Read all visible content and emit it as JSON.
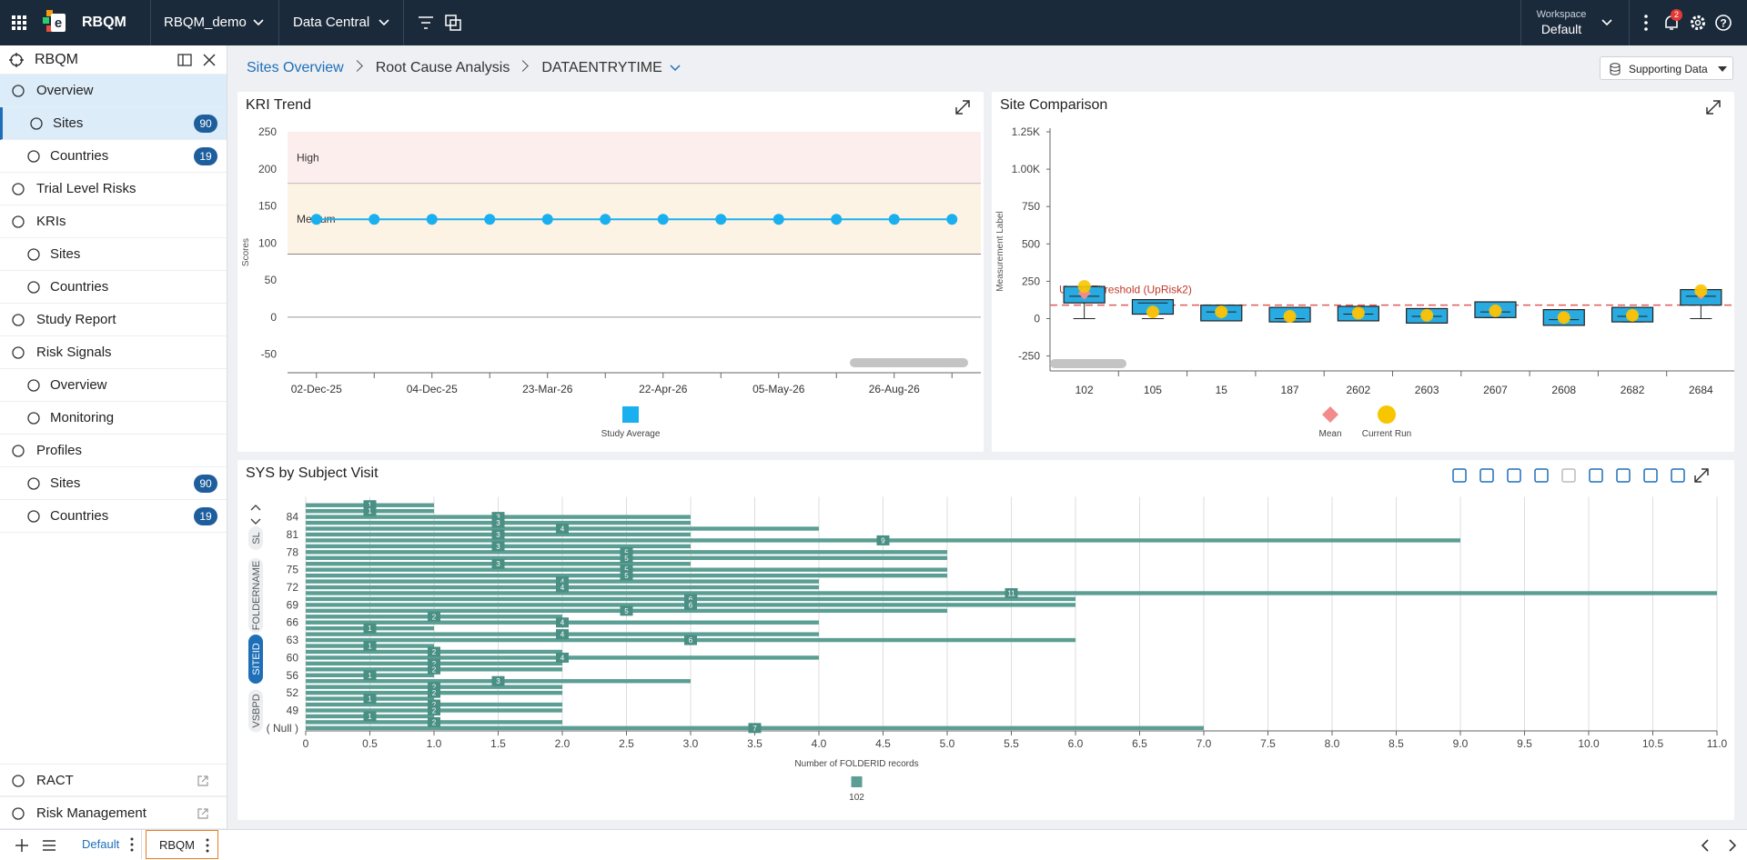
{
  "header": {
    "app": "RBQM",
    "study": "RBQM_demo",
    "module": "Data Central",
    "workspace_label": "Workspace",
    "workspace": "Default",
    "notifications": 2
  },
  "sidebar": {
    "title": "RBQM",
    "items": [
      {
        "label": "Overview",
        "active": true,
        "children": [
          {
            "label": "Sites",
            "badge": 90,
            "active": true
          },
          {
            "label": "Countries",
            "badge": 19
          }
        ]
      },
      {
        "label": "Trial Level Risks"
      },
      {
        "label": "KRIs",
        "children": [
          {
            "label": "Sites"
          },
          {
            "label": "Countries"
          }
        ]
      },
      {
        "label": "Study Report"
      },
      {
        "label": "Risk Signals",
        "children": [
          {
            "label": "Overview"
          },
          {
            "label": "Monitoring"
          }
        ]
      },
      {
        "label": "Profiles",
        "children": [
          {
            "label": "Sites",
            "badge": 90
          },
          {
            "label": "Countries",
            "badge": 19
          }
        ]
      }
    ],
    "links": [
      "RACT",
      "Risk Management"
    ]
  },
  "breadcrumb": [
    "Sites Overview",
    "Root Cause Analysis",
    "DATAENTRYTIME"
  ],
  "supporting_button": "Supporting Data",
  "tabs": [
    "Default",
    "RBQM"
  ],
  "chart_data": [
    {
      "type": "line",
      "title": "KRI Trend",
      "y_label": "Scores",
      "categories": [
        "02-Dec-25",
        null,
        "04-Dec-25",
        null,
        "23-Mar-26",
        null,
        "22-Apr-26",
        null,
        "05-May-26",
        null,
        "26-Aug-26",
        null
      ],
      "series": [
        {
          "name": "Study Average",
          "color": "#1ab0ef",
          "values": [
            132,
            132,
            132,
            132,
            132,
            132,
            132,
            132,
            132,
            132,
            132,
            132
          ]
        }
      ],
      "bands": [
        {
          "name": "High",
          "from": 180,
          "to": 250,
          "color": "#fdeeee"
        },
        {
          "name": "Medium",
          "from": 85,
          "to": 180,
          "color": "#fdf3e4"
        }
      ],
      "ylim": [
        -75,
        250
      ],
      "yticks": [
        -50,
        0,
        50,
        100,
        150,
        200,
        250
      ],
      "grid": false
    },
    {
      "type": "box",
      "title": "Site Comparison",
      "y_label": "Measurement Label",
      "categories": [
        "102",
        "105",
        "15",
        "187",
        "2602",
        "2603",
        "2607",
        "2608",
        "2682",
        "2684"
      ],
      "box_color": "#29aae1",
      "boxes": [
        {
          "min": 0,
          "q1": 105,
          "median": 150,
          "q3": 215,
          "max": 215
        },
        {
          "min": 0,
          "q1": 30,
          "median": 105,
          "q3": 127,
          "max": 127
        },
        {
          "min": -15,
          "q1": -15,
          "median": 45,
          "q3": 90,
          "max": 90
        },
        {
          "min": -22,
          "q1": -22,
          "median": 0,
          "q3": 75,
          "max": 75
        },
        {
          "min": -15,
          "q1": -15,
          "median": 30,
          "q3": 82,
          "max": 82
        },
        {
          "min": -30,
          "q1": -30,
          "median": 15,
          "q3": 67,
          "max": 67
        },
        {
          "min": 7,
          "q1": 7,
          "median": 45,
          "q3": 112,
          "max": 112
        },
        {
          "min": -45,
          "q1": -45,
          "median": -7,
          "q3": 60,
          "max": 60
        },
        {
          "min": -22,
          "q1": -22,
          "median": 15,
          "q3": 75,
          "max": 75
        },
        {
          "min": 0,
          "q1": 90,
          "median": 150,
          "q3": 194,
          "max": 194
        }
      ],
      "series": [
        {
          "name": "Mean",
          "color": "#f28b8b",
          "values": [
            170,
            45,
            45,
            15,
            37,
            22,
            52,
            7,
            22,
            170
          ]
        },
        {
          "name": "Current Run",
          "color": "#f7c600",
          "values": [
            215,
            45,
            45,
            15,
            37,
            22,
            52,
            7,
            22,
            187
          ]
        }
      ],
      "threshold": {
        "label": "Upper Threshold (UpRisk2)",
        "value": 90,
        "color": "#e05a5a"
      },
      "ylim": [
        -350,
        1250
      ],
      "yticks": [
        -250,
        0,
        250,
        500,
        750,
        {
          "value": 1000,
          "label": "1.00K"
        },
        {
          "value": 1250,
          "label": "1.25K"
        }
      ],
      "grid": false
    },
    {
      "type": "hbar",
      "title": "SYS by Subject Visit",
      "x_label": "Number of FOLDERID records",
      "dimensions": [
        "SL",
        "FOLDERNAME",
        "SITEID",
        "VSBPD"
      ],
      "active_dimension": "SITEID",
      "categories": [
        null,
        null,
        "84",
        null,
        null,
        "81",
        null,
        null,
        "78",
        null,
        null,
        "75",
        null,
        null,
        "72",
        null,
        null,
        "69",
        null,
        null,
        "66",
        null,
        null,
        "63",
        null,
        null,
        "60",
        null,
        null,
        "56",
        null,
        null,
        "52",
        null,
        null,
        "49",
        null,
        null,
        "( Null )"
      ],
      "series": [
        {
          "name": "102",
          "color": "#5b9e94",
          "values": [
            1,
            1,
            3,
            3,
            4,
            3,
            9,
            3,
            5,
            5,
            3,
            5,
            5,
            4,
            4,
            11,
            6,
            6,
            5,
            2,
            4,
            1,
            4,
            6,
            1,
            2,
            4,
            2,
            2,
            1,
            3,
            2,
            2,
            1,
            2,
            2,
            1,
            2,
            7
          ]
        }
      ],
      "xlim": [
        0,
        11
      ],
      "xticks": [
        0,
        0.5,
        {
          "value": 1,
          "label": "1.0"
        },
        1.5,
        {
          "value": 2,
          "label": "2.0"
        },
        2.5,
        {
          "value": 3,
          "label": "3.0"
        },
        3.5,
        {
          "value": 4,
          "label": "4.0"
        },
        4.5,
        {
          "value": 5,
          "label": "5.0"
        },
        5.5,
        {
          "value": 6,
          "label": "6.0"
        },
        6.5,
        {
          "value": 7,
          "label": "7.0"
        },
        7.5,
        {
          "value": 8,
          "label": "8.0"
        },
        8.5,
        {
          "value": 9,
          "label": "9.0"
        },
        9.5,
        {
          "value": 10,
          "label": "10.0"
        },
        10.5,
        {
          "value": 11,
          "label": "11.0"
        }
      ],
      "grid": true
    }
  ]
}
